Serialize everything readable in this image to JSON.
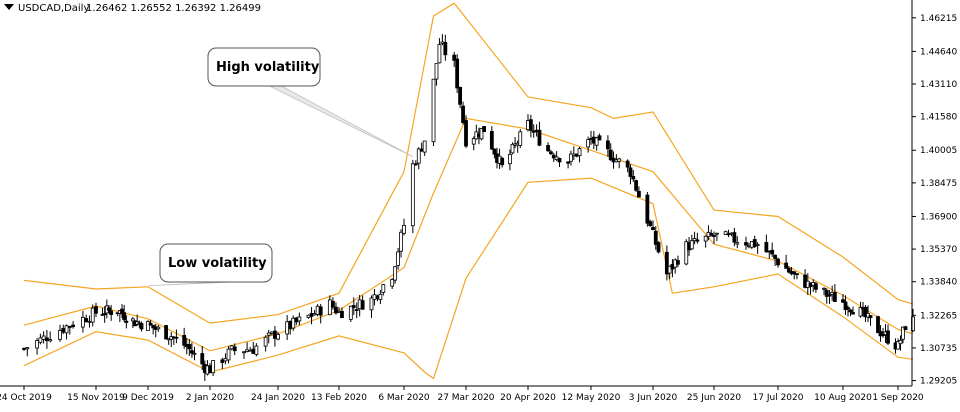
{
  "header": {
    "symbol": "USDCAD,Daily",
    "ohlc": "1.26462 1.26552 1.26392 1.26499"
  },
  "annotations": [
    {
      "text": "High volatility",
      "at_date": "9 Mar 2020",
      "at_price": 1.397
    },
    {
      "text": "Low volatility",
      "at_date": "9 Dec 2019",
      "at_price": 1.3365
    }
  ],
  "colors": {
    "band": "#f5a623",
    "candle": "#000000",
    "candle_up_fill": "#ffffff",
    "axis": "#000000",
    "callout_line": "#c0c0c0"
  },
  "chart_data": {
    "type": "candlestick",
    "indicator": "Bollinger Bands",
    "y_ticks": [
      1.46215,
      1.4464,
      1.4311,
      1.4158,
      1.40005,
      1.38475,
      1.369,
      1.3537,
      1.3384,
      1.32265,
      1.30735,
      1.29205
    ],
    "x_ticks": [
      "24 Oct 2019",
      "15 Nov 2019",
      "9 Dec 2019",
      "2 Jan 2020",
      "24 Jan 2020",
      "13 Feb 2020",
      "6 Mar 2020",
      "27 Mar 2020",
      "20 Apr 2020",
      "12 May 2020",
      "3 Jun 2020",
      "25 Jun 2020",
      "17 Jul 2020",
      "10 Aug 2020",
      "1 Sep 2020"
    ],
    "ylim": [
      1.2895,
      1.4705
    ],
    "price_path": [
      [
        "24 Oct 2019",
        1.307
      ],
      [
        "4 Nov 2019",
        1.316
      ],
      [
        "15 Nov 2019",
        1.324
      ],
      [
        "25 Nov 2019",
        1.325
      ],
      [
        "2 Dec 2019",
        1.32
      ],
      [
        "9 Dec 2019",
        1.318
      ],
      [
        "18 Dec 2019",
        1.313
      ],
      [
        "24 Dec 2019",
        1.308
      ],
      [
        "31 Dec 2019",
        1.2985
      ],
      [
        "2 Jan 2020",
        1.2975
      ],
      [
        "9 Jan 2020",
        1.306
      ],
      [
        "16 Jan 2020",
        1.307
      ],
      [
        "24 Jan 2020",
        1.315
      ],
      [
        "3 Feb 2020",
        1.322
      ],
      [
        "10 Feb 2020",
        1.328
      ],
      [
        "13 Feb 2020",
        1.324
      ],
      [
        "24 Feb 2020",
        1.33
      ],
      [
        "2 Mar 2020",
        1.342
      ],
      [
        "6 Mar 2020",
        1.365
      ],
      [
        "9 Mar 2020",
        1.393
      ],
      [
        "13 Mar 2020",
        1.405
      ],
      [
        "18 Mar 2020",
        1.45
      ],
      [
        "23 Mar 2020",
        1.44
      ],
      [
        "27 Mar 2020",
        1.405
      ],
      [
        "3 Apr 2020",
        1.41
      ],
      [
        "10 Apr 2020",
        1.392
      ],
      [
        "20 Apr 2020",
        1.412
      ],
      [
        "27 Apr 2020",
        1.4
      ],
      [
        "4 May 2020",
        1.395
      ],
      [
        "12 May 2020",
        1.405
      ],
      [
        "19 May 2020",
        1.398
      ],
      [
        "26 May 2020",
        1.39
      ],
      [
        "3 Jun 2020",
        1.36
      ],
      [
        "8 Jun 2020",
        1.342
      ],
      [
        "15 Jun 2020",
        1.355
      ],
      [
        "25 Jun 2020",
        1.36
      ],
      [
        "3 Jul 2020",
        1.358
      ],
      [
        "10 Jul 2020",
        1.356
      ],
      [
        "17 Jul 2020",
        1.348
      ],
      [
        "24 Jul 2020",
        1.34
      ],
      [
        "3 Aug 2020",
        1.333
      ],
      [
        "10 Aug 2020",
        1.329
      ],
      [
        "17 Aug 2020",
        1.324
      ],
      [
        "24 Aug 2020",
        1.316
      ],
      [
        "1 Sep 2020",
        1.308
      ],
      [
        "4 Sep 2020",
        1.318
      ],
      [
        "7 Sep 2020",
        1.32
      ]
    ],
    "bollinger": {
      "upper": [
        [
          "24 Oct 2019",
          1.339
        ],
        [
          "15 Nov 2019",
          1.335
        ],
        [
          "9 Dec 2019",
          1.336
        ],
        [
          "2 Jan 2020",
          1.319
        ],
        [
          "24 Jan 2020",
          1.323
        ],
        [
          "13 Feb 2020",
          1.333
        ],
        [
          "6 Mar 2020",
          1.39
        ],
        [
          "16 Mar 2020",
          1.463
        ],
        [
          "23 Mar 2020",
          1.469
        ],
        [
          "27 Mar 2020",
          1.462
        ],
        [
          "20 Apr 2020",
          1.425
        ],
        [
          "12 May 2020",
          1.42
        ],
        [
          "20 May 2020",
          1.415
        ],
        [
          "3 Jun 2020",
          1.418
        ],
        [
          "25 Jun 2020",
          1.372
        ],
        [
          "17 Jul 2020",
          1.369
        ],
        [
          "10 Aug 2020",
          1.35
        ],
        [
          "1 Sep 2020",
          1.33
        ],
        [
          "7 Sep 2020",
          1.328
        ]
      ],
      "middle": [
        [
          "24 Oct 2019",
          1.318
        ],
        [
          "15 Nov 2019",
          1.327
        ],
        [
          "9 Dec 2019",
          1.321
        ],
        [
          "2 Jan 2020",
          1.306
        ],
        [
          "24 Jan 2020",
          1.314
        ],
        [
          "13 Feb 2020",
          1.325
        ],
        [
          "6 Mar 2020",
          1.345
        ],
        [
          "16 Mar 2020",
          1.38
        ],
        [
          "27 Mar 2020",
          1.415
        ],
        [
          "20 Apr 2020",
          1.41
        ],
        [
          "12 May 2020",
          1.4
        ],
        [
          "3 Jun 2020",
          1.39
        ],
        [
          "25 Jun 2020",
          1.356
        ],
        [
          "17 Jul 2020",
          1.348
        ],
        [
          "10 Aug 2020",
          1.332
        ],
        [
          "1 Sep 2020",
          1.316
        ],
        [
          "7 Sep 2020",
          1.314
        ]
      ],
      "lower": [
        [
          "24 Oct 2019",
          1.299
        ],
        [
          "15 Nov 2019",
          1.315
        ],
        [
          "9 Dec 2019",
          1.311
        ],
        [
          "2 Jan 2020",
          1.296
        ],
        [
          "24 Jan 2020",
          1.304
        ],
        [
          "13 Feb 2020",
          1.313
        ],
        [
          "6 Mar 2020",
          1.305
        ],
        [
          "13 Mar 2020",
          1.296
        ],
        [
          "16 Mar 2020",
          1.293
        ],
        [
          "27 Mar 2020",
          1.34
        ],
        [
          "20 Apr 2020",
          1.385
        ],
        [
          "12 May 2020",
          1.387
        ],
        [
          "3 Jun 2020",
          1.375
        ],
        [
          "10 Jun 2020",
          1.333
        ],
        [
          "25 Jun 2020",
          1.336
        ],
        [
          "17 Jul 2020",
          1.342
        ],
        [
          "10 Aug 2020",
          1.322
        ],
        [
          "1 Sep 2020",
          1.303
        ],
        [
          "7 Sep 2020",
          1.302
        ]
      ]
    }
  }
}
